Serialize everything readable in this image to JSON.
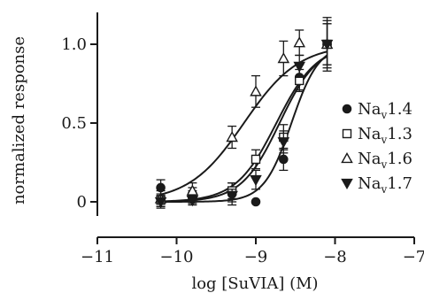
{
  "chart_data": {
    "type": "scatter",
    "title": "",
    "xlabel": "log [SuVIA] (M)",
    "ylabel": "normalized response",
    "xlim": [
      -11,
      -7
    ],
    "ylim": [
      -0.1,
      1.2
    ],
    "x_ticks": [
      -11,
      -10,
      -9,
      -8,
      -7
    ],
    "x_tick_labels": [
      "−11",
      "−10",
      "−9",
      "−8",
      "−7"
    ],
    "y_ticks": [
      0,
      0.5,
      1.0
    ],
    "y_tick_labels": [
      "0",
      "0.5",
      "1.0"
    ],
    "legend_position": "right",
    "fit_curves": true,
    "series": [
      {
        "name": "Na",
        "subscript": "v",
        "suffix": "1.4",
        "marker": "filled-circle",
        "x": [
          -10.2,
          -9.8,
          -9.3,
          -9.0,
          -8.65,
          -8.45,
          -8.1
        ],
        "y": [
          0.09,
          0.05,
          0.05,
          0.0,
          0.27,
          0.79,
          1.0
        ],
        "err": [
          0.05,
          0.04,
          0.07,
          0.0,
          0.07,
          0.08,
          0.13
        ],
        "fit": {
          "ec50_log": -8.55,
          "hill": 2.5
        }
      },
      {
        "name": "Na",
        "subscript": "v",
        "suffix": "1.3",
        "marker": "open-square",
        "x": [
          -10.2,
          -9.8,
          -9.3,
          -9.0,
          -8.65,
          -8.45,
          -8.1
        ],
        "y": [
          0.01,
          0.03,
          0.07,
          0.27,
          0.41,
          0.77,
          1.0
        ],
        "err": [
          0.04,
          0.04,
          0.05,
          0.06,
          0.08,
          0.07,
          0.13
        ],
        "fit": {
          "ec50_log": -8.74,
          "hill": 1.7
        }
      },
      {
        "name": "Na",
        "subscript": "v",
        "suffix": "1.6",
        "marker": "open-triangle",
        "x": [
          -10.2,
          -9.8,
          -9.3,
          -9.0,
          -8.65,
          -8.45,
          -8.1
        ],
        "y": [
          0.02,
          0.07,
          0.41,
          0.7,
          0.91,
          1.01,
          1.0
        ],
        "err": [
          0.05,
          0.05,
          0.07,
          0.1,
          0.11,
          0.08,
          0.17
        ],
        "fit": {
          "ec50_log": -9.15,
          "hill": 1.25
        }
      },
      {
        "name": "Na",
        "subscript": "v",
        "suffix": "1.7",
        "marker": "filled-triangle-down",
        "x": [
          -10.2,
          -9.8,
          -9.3,
          -9.0,
          -8.65,
          -8.45,
          -8.1
        ],
        "y": [
          0.0,
          0.01,
          0.04,
          0.14,
          0.38,
          0.86,
          1.0
        ],
        "err": [
          0.04,
          0.03,
          0.04,
          0.06,
          0.07,
          0.07,
          0.15
        ],
        "fit": {
          "ec50_log": -8.7,
          "hill": 1.8
        }
      }
    ]
  }
}
